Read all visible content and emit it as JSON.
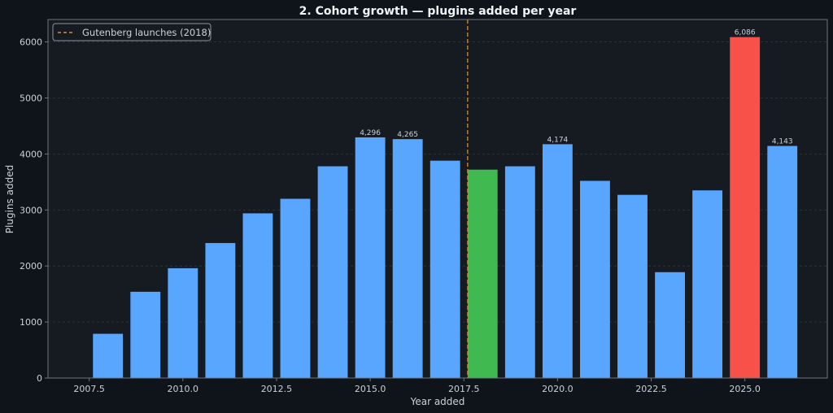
{
  "chart_data": {
    "type": "bar",
    "title": "2. Cohort growth — plugins added per year",
    "xlabel": "Year added",
    "ylabel": "Plugins added",
    "xlim": [
      2006.4,
      2027.2
    ],
    "ylim": [
      0,
      6400
    ],
    "xticks": [
      2007.5,
      2010.0,
      2012.5,
      2015.0,
      2017.5,
      2020.0,
      2022.5,
      2025.0
    ],
    "xtick_labels": [
      "2007.5",
      "2010.0",
      "2012.5",
      "2015.0",
      "2017.5",
      "2020.0",
      "2022.5",
      "2025.0"
    ],
    "yticks": [
      0,
      1000,
      2000,
      3000,
      4000,
      5000,
      6000
    ],
    "ytick_labels": [
      "0",
      "1000",
      "2000",
      "3000",
      "4000",
      "5000",
      "6000"
    ],
    "grid": true,
    "x": [
      2008,
      2009,
      2010,
      2011,
      2012,
      2013,
      2014,
      2015,
      2016,
      2017,
      2018,
      2019,
      2020,
      2021,
      2022,
      2023,
      2024,
      2025,
      2026
    ],
    "values": [
      790,
      1540,
      1960,
      2410,
      2940,
      3200,
      3780,
      4296,
      4265,
      3880,
      3720,
      3780,
      4174,
      3520,
      3270,
      1890,
      3350,
      6086,
      4143
    ],
    "colors": [
      "#58a6ff",
      "#58a6ff",
      "#58a6ff",
      "#58a6ff",
      "#58a6ff",
      "#58a6ff",
      "#58a6ff",
      "#58a6ff",
      "#58a6ff",
      "#58a6ff",
      "#3fb950",
      "#58a6ff",
      "#58a6ff",
      "#58a6ff",
      "#58a6ff",
      "#58a6ff",
      "#58a6ff",
      "#f85149",
      "#58a6ff"
    ],
    "annotations": [
      {
        "x": 2015,
        "value": 4296,
        "text": "4,296"
      },
      {
        "x": 2016,
        "value": 4265,
        "text": "4,265"
      },
      {
        "x": 2020,
        "value": 4174,
        "text": "4,174"
      },
      {
        "x": 2025,
        "value": 6086,
        "text": "6,086"
      },
      {
        "x": 2026,
        "value": 4143,
        "text": "4,143"
      }
    ],
    "reference_line": {
      "x": 2017.6,
      "label": "Gutenberg launches (2018)",
      "color": "#d18b47"
    },
    "legend_position": "top-left"
  },
  "theme": {
    "page_bg": "#0f131a",
    "plot_bg": "#161b22",
    "spine": "#6e7681",
    "grid": "#30363d"
  }
}
